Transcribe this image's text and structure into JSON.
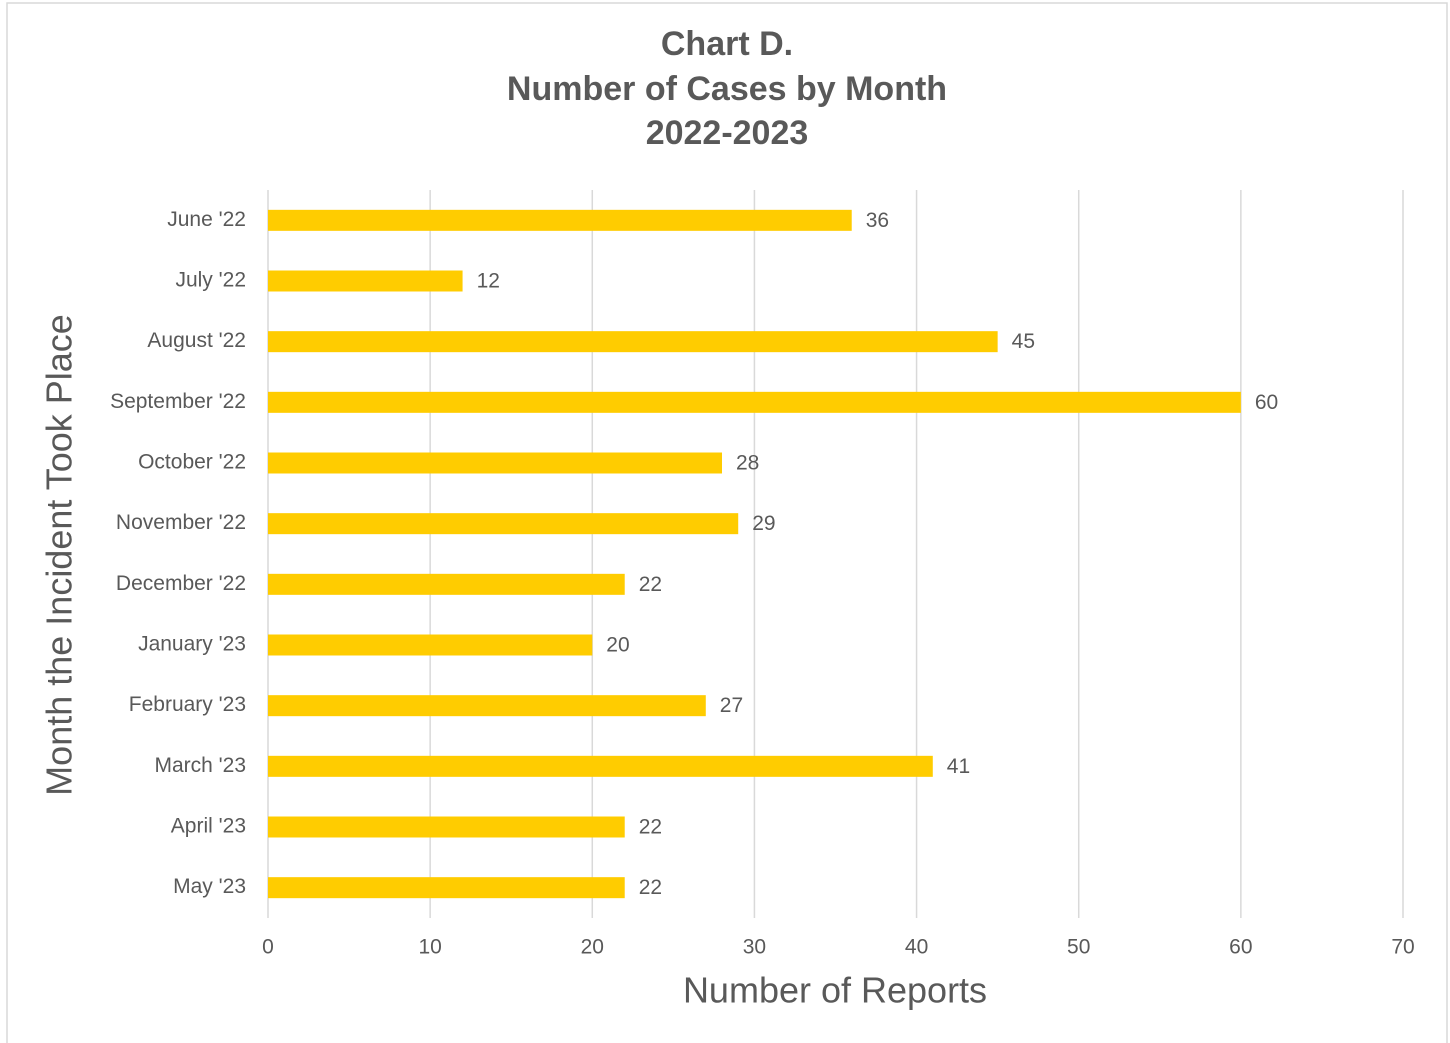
{
  "chart_data": {
    "type": "bar",
    "orientation": "horizontal",
    "title": [
      "Chart D.",
      "Number of Cases by Month",
      "2022-2023"
    ],
    "xlabel": "Number of Reports",
    "ylabel": "Month the Incident Took Place",
    "categories": [
      "June '22",
      "July '22",
      "August '22",
      "September '22",
      "October '22",
      "November '22",
      "December '22",
      "January '23",
      "February '23",
      "March '23",
      "April '23",
      "May '23"
    ],
    "values": [
      36,
      12,
      45,
      60,
      28,
      29,
      22,
      20,
      27,
      41,
      22,
      22
    ],
    "color": "#ffcc00",
    "xlim": [
      0,
      70
    ],
    "xticks": [
      0,
      10,
      20,
      30,
      40,
      50,
      60,
      70
    ],
    "grid": true
  }
}
